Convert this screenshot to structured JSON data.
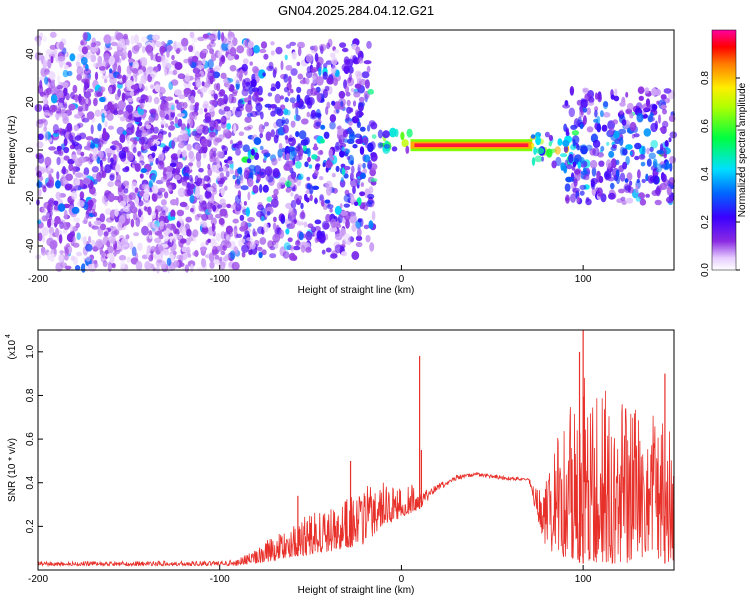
{
  "title": "GN04.2025.284.04.12.G21",
  "colors": {
    "snr_line": "#e8302a",
    "frame": "#000000",
    "background": "#ffffff"
  },
  "chart_data": [
    {
      "type": "heatmap",
      "name": "spectrogram",
      "xlabel": "Height of straight line (km)",
      "ylabel": "Frequency (Hz)",
      "xlim": [
        -200,
        150
      ],
      "ylim": [
        -50,
        50
      ],
      "x_ticks": [
        -200,
        -100,
        0,
        100
      ],
      "y_ticks": [
        -40,
        -20,
        0,
        20,
        40
      ],
      "colorbar": {
        "label": "Normalized spectral amplitude",
        "range": [
          0,
          1
        ],
        "ticks": [
          "0.0",
          "0.2",
          "0.4",
          "0.6",
          "0.8"
        ]
      },
      "features": [
        {
          "description": "diffuse low-amplitude speckle",
          "x_range": [
            -200,
            -90
          ],
          "freq_range": [
            -50,
            48
          ],
          "amplitude": 0.12
        },
        {
          "description": "scattered blobs with descending streaks",
          "x_range": [
            -90,
            -15
          ],
          "freq_range": [
            -45,
            45
          ],
          "amplitude": 0.2
        },
        {
          "description": "converging bright band",
          "x_range": [
            -18,
            5
          ],
          "freq_range": [
            0,
            8
          ],
          "amplitude": 0.45
        },
        {
          "description": "narrow high-amplitude carrier line",
          "x_range": [
            5,
            72
          ],
          "freq": 2,
          "amplitude": 0.95
        },
        {
          "description": "band broadening",
          "x_range": [
            72,
            95
          ],
          "freq_range": [
            -8,
            8
          ],
          "amplitude": 0.5
        },
        {
          "description": "scattered blobs",
          "x_range": [
            90,
            150
          ],
          "freq_range": [
            -22,
            25
          ],
          "amplitude": 0.25
        }
      ]
    },
    {
      "type": "line",
      "name": "snr",
      "xlabel": "Height of straight line (km)",
      "ylabel": "SNR (10 * v/v)",
      "y_multiplier": "(x10",
      "y_exponent": "4",
      "xlim": [
        -200,
        150
      ],
      "ylim": [
        0,
        1.1
      ],
      "x_ticks": [
        -200,
        -100,
        0,
        100
      ],
      "y_ticks": [
        "0.2",
        "0.4",
        "0.6",
        "0.8",
        "1.0"
      ],
      "series": [
        {
          "name": "SNR",
          "envelope": {
            "x": [
              -200,
              -100,
              -90,
              -80,
              -70,
              -60,
              -50,
              -40,
              -30,
              -20,
              -10,
              0,
              10,
              20,
              30,
              40,
              50,
              60,
              70,
              78,
              85,
              100,
              120,
              140,
              150
            ],
            "baseline": [
              0.02,
              0.02,
              0.02,
              0.03,
              0.04,
              0.06,
              0.07,
              0.08,
              0.1,
              0.12,
              0.2,
              0.24,
              0.28,
              0.36,
              0.41,
              0.43,
              0.42,
              0.41,
              0.41,
              0.12,
              0.06,
              0.03,
              0.03,
              0.03,
              0.03
            ],
            "peak": [
              0.04,
              0.04,
              0.05,
              0.1,
              0.16,
              0.22,
              0.26,
              0.3,
              0.35,
              0.38,
              0.42,
              0.38,
              0.4,
              0.42,
              0.45,
              0.46,
              0.45,
              0.44,
              0.43,
              0.5,
              0.6,
              0.9,
              0.8,
              0.7,
              0.65
            ]
          },
          "spikes": [
            {
              "x": 10,
              "y": 0.98
            },
            {
              "x": 11,
              "y": 0.55
            },
            {
              "x": -57,
              "y": 0.34
            },
            {
              "x": -28,
              "y": 0.5
            },
            {
              "x": 100,
              "y": 1.1
            },
            {
              "x": 98,
              "y": 1.0
            },
            {
              "x": 145,
              "y": 0.9
            }
          ]
        }
      ]
    }
  ]
}
